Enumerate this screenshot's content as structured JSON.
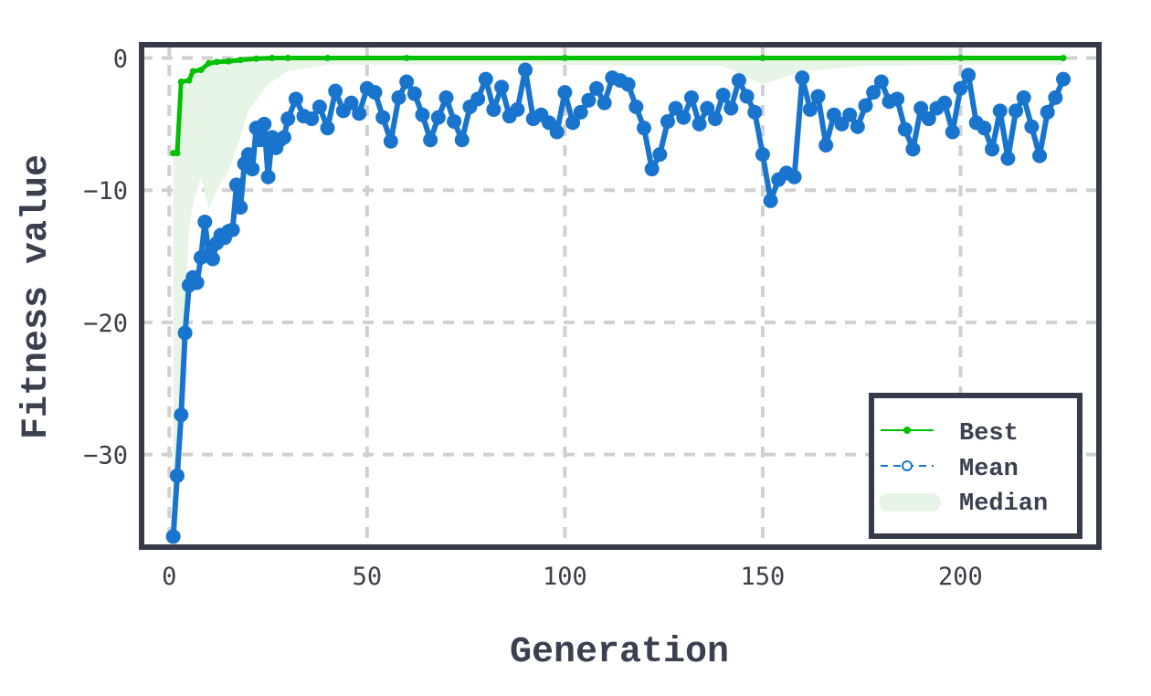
{
  "chart_data": {
    "type": "line",
    "xlabel": "Generation",
    "ylabel": "Fitness value",
    "xlim": [
      -7,
      235
    ],
    "ylim": [
      -37,
      1
    ],
    "xticks": [
      0,
      50,
      100,
      150,
      200
    ],
    "yticks": [
      0,
      -10,
      -20,
      -30
    ],
    "ytick_labels": [
      "0",
      "−10",
      "−20",
      "−30"
    ],
    "grid": true,
    "legend_position": "bottom-right",
    "colors": {
      "best": "#00c000",
      "mean": "#1874cd",
      "median_fill": "#e6f5e6",
      "frame": "#353b4a",
      "grid": "#d0d0d0"
    },
    "series": [
      {
        "name": "Best",
        "x": [
          1,
          2,
          3,
          5,
          6,
          8,
          10,
          12,
          15,
          18,
          22,
          26,
          30,
          40,
          60,
          100,
          150,
          200,
          226
        ],
        "values": [
          -7.2,
          -7.2,
          -1.8,
          -1.7,
          -1.0,
          -0.9,
          -0.4,
          -0.3,
          -0.25,
          -0.15,
          -0.05,
          0,
          0,
          0,
          0,
          0,
          0,
          0,
          0
        ]
      },
      {
        "name": "Mean",
        "x": [
          1,
          2,
          3,
          4,
          5,
          6,
          7,
          8,
          9,
          10,
          11,
          12,
          13,
          14,
          15,
          16,
          17,
          18,
          19,
          20,
          21,
          22,
          23,
          24,
          25,
          26,
          27,
          28,
          29,
          30,
          32,
          34,
          36,
          38,
          40,
          42,
          44,
          46,
          48,
          50,
          52,
          54,
          56,
          58,
          60,
          62,
          64,
          66,
          68,
          70,
          72,
          74,
          76,
          78,
          80,
          82,
          84,
          86,
          88,
          90,
          92,
          94,
          96,
          98,
          100,
          102,
          104,
          106,
          108,
          110,
          112,
          114,
          116,
          118,
          120,
          122,
          124,
          126,
          128,
          130,
          132,
          134,
          136,
          138,
          140,
          142,
          144,
          146,
          148,
          150,
          152,
          154,
          156,
          158,
          160,
          162,
          164,
          166,
          168,
          170,
          172,
          174,
          176,
          178,
          180,
          182,
          184,
          186,
          188,
          190,
          192,
          194,
          196,
          198,
          200,
          202,
          204,
          206,
          208,
          210,
          212,
          214,
          216,
          218,
          220,
          222,
          224,
          226
        ],
        "values": [
          -36.2,
          -31.6,
          -27.0,
          -20.8,
          -17.2,
          -16.6,
          -17.0,
          -15.1,
          -12.4,
          -14.9,
          -15.2,
          -14.0,
          -13.4,
          -13.6,
          -13.1,
          -13.0,
          -9.6,
          -11.3,
          -8.0,
          -7.3,
          -8.4,
          -5.3,
          -6.2,
          -5.0,
          -9.0,
          -6.0,
          -6.8,
          -6.2,
          -6.0,
          -4.6,
          -3.1,
          -4.4,
          -4.6,
          -3.7,
          -5.3,
          -2.5,
          -4.0,
          -3.4,
          -4.2,
          -2.3,
          -2.6,
          -4.5,
          -6.3,
          -3.0,
          -1.8,
          -2.7,
          -4.3,
          -6.2,
          -4.5,
          -3.0,
          -4.8,
          -6.2,
          -3.7,
          -3.1,
          -1.6,
          -3.9,
          -2.2,
          -4.4,
          -3.9,
          -0.9,
          -4.6,
          -4.3,
          -4.9,
          -5.6,
          -2.6,
          -4.9,
          -4.1,
          -3.2,
          -2.3,
          -3.4,
          -1.5,
          -1.7,
          -2.0,
          -3.7,
          -5.3,
          -8.4,
          -7.3,
          -4.8,
          -3.8,
          -4.5,
          -3.0,
          -5.0,
          -3.8,
          -4.6,
          -2.8,
          -3.8,
          -1.7,
          -2.9,
          -4.1,
          -7.3,
          -10.8,
          -9.2,
          -8.7,
          -9.0,
          -1.5,
          -3.9,
          -2.9,
          -6.6,
          -4.3,
          -5.0,
          -4.3,
          -5.2,
          -3.6,
          -2.6,
          -1.8,
          -3.3,
          -3.1,
          -5.4,
          -6.9,
          -3.8,
          -4.6,
          -3.8,
          -3.4,
          -5.6,
          -2.3,
          -1.3,
          -4.9,
          -5.3,
          -6.9,
          -4.0,
          -7.6,
          -4.0,
          -3.0,
          -5.2,
          -7.4,
          -4.1,
          -3.0,
          -1.6
        ]
      },
      {
        "name": "Median",
        "x": [
          1,
          2,
          3,
          4,
          5,
          6,
          8,
          10,
          12,
          15,
          18,
          20,
          25,
          30,
          40,
          60,
          80,
          100,
          120,
          140,
          150,
          160,
          175,
          180,
          200,
          226
        ],
        "lower": [
          -36.5,
          -33.0,
          -27.0,
          -19.0,
          -13.0,
          -11.0,
          -9.0,
          -11.5,
          -10.0,
          -8.5,
          -6.0,
          -4.0,
          -2.0,
          -1.0,
          -0.5,
          -0.5,
          -0.5,
          -0.5,
          -0.6,
          -0.6,
          -2.0,
          -1.0,
          -0.6,
          -0.6,
          -0.5,
          -0.5
        ],
        "upper": [
          -7.0,
          -6.0,
          -4.0,
          -2.0,
          -1.6,
          -1.2,
          -0.9,
          -0.5,
          -0.4,
          -0.3,
          -0.2,
          -0.1,
          0,
          0,
          0,
          0,
          0,
          0,
          0,
          0,
          0,
          0,
          0,
          0,
          0,
          0
        ]
      }
    ]
  }
}
